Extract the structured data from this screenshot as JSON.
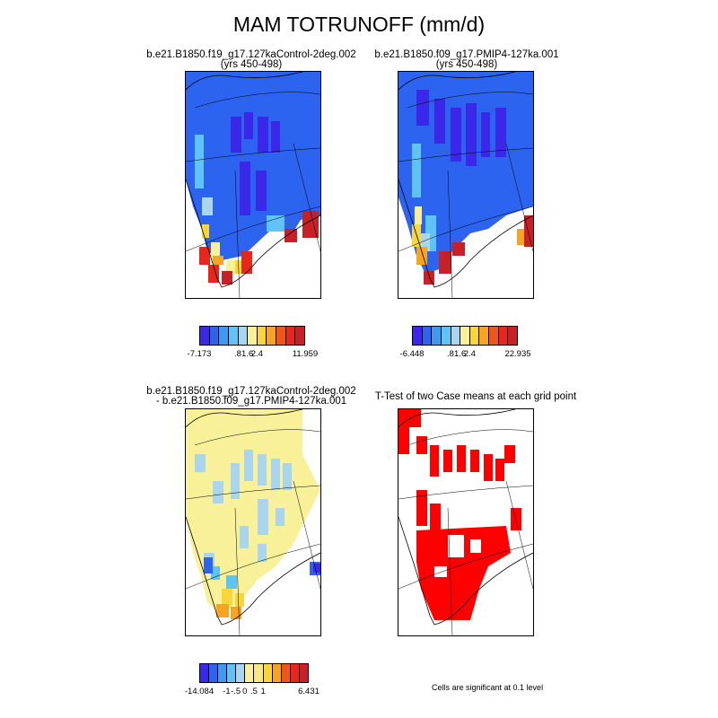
{
  "title": "MAM TOTRUNOFF (mm/d)",
  "panels": [
    {
      "title_line1": "b.e21.B1850.f19_g17.127kaControl-2deg.002",
      "title_line2": "(yrs 450-498)",
      "colors": [
        "#3b27e8",
        "#2d64ef",
        "#3d99f2",
        "#5fc3f6",
        "#a9d6ee",
        "#f8f19a",
        "#f9d53c",
        "#f7a323",
        "#ef5619",
        "#e7271c",
        "#c52127"
      ],
      "labels": [
        "-7.173",
        ".8",
        "1.6",
        "2.4",
        "11.959"
      ],
      "label_slots": [
        0,
        4,
        5,
        6,
        11
      ]
    },
    {
      "title_line1": "b.e21.B1850.f09_g17.PMIP4-127ka.001",
      "title_line2": "(yrs 450-498)",
      "colors": [
        "#3b27e8",
        "#2d64ef",
        "#3d99f2",
        "#5fc3f6",
        "#a9d6ee",
        "#f8f19a",
        "#f9d53c",
        "#f7a323",
        "#ef5619",
        "#e7271c",
        "#c52127"
      ],
      "labels": [
        "-6.448",
        ".8",
        "1.6",
        "2.4",
        "22.935"
      ],
      "label_slots": [
        0,
        4,
        5,
        6,
        11
      ]
    },
    {
      "title_line1": "b.e21.B1850.f19_g17.127kaControl-2deg.002",
      "title_line2": "- b.e21.B1850.f09_g17.PMIP4-127ka.001",
      "colors": [
        "#3b27e8",
        "#2d64ef",
        "#3d99f2",
        "#5fc3f6",
        "#a9d6ee",
        "#f8f19a",
        "#f9e784",
        "#f9d53c",
        "#f7a323",
        "#ef5619",
        "#e7271c",
        "#c52127"
      ],
      "labels": [
        "-14.084",
        "-1",
        "-.5",
        "0",
        ".5",
        "1",
        "6.431"
      ],
      "label_slots": [
        0,
        3,
        4,
        5,
        6,
        7,
        12
      ]
    },
    {
      "title_line1": "T-Test of two Case means at each grid point",
      "title_line2": ""
    }
  ],
  "significance_note": "Cells are significant at 0.1 level",
  "significance_color": "#ff0000"
}
